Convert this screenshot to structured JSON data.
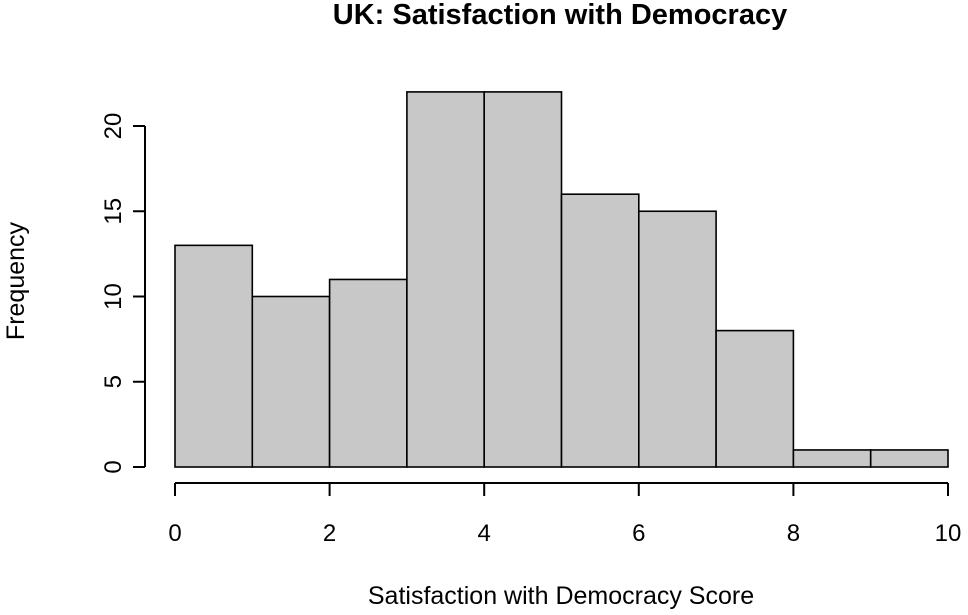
{
  "chart_data": {
    "type": "bar",
    "title": "UK: Satisfaction with Democracy",
    "xlabel": "Satisfaction with Democracy Score",
    "ylabel": "Frequency",
    "bin_edges": [
      0,
      1,
      2,
      3,
      4,
      5,
      6,
      7,
      8,
      9,
      10
    ],
    "values": [
      13,
      10,
      11,
      22,
      22,
      16,
      15,
      8,
      1,
      1
    ],
    "xlim": [
      0,
      10
    ],
    "ylim": [
      0,
      22
    ],
    "x_ticks": [
      0,
      2,
      4,
      6,
      8,
      10
    ],
    "x_tick_labels": [
      "0",
      "2",
      "4",
      "6",
      "8",
      "10"
    ],
    "y_ticks": [
      0,
      5,
      10,
      15,
      20
    ],
    "y_tick_labels": [
      "0",
      "5",
      "10",
      "15",
      "20"
    ],
    "grid": false,
    "bar_color": "#c8c8c8",
    "edge_color": "#000000"
  }
}
